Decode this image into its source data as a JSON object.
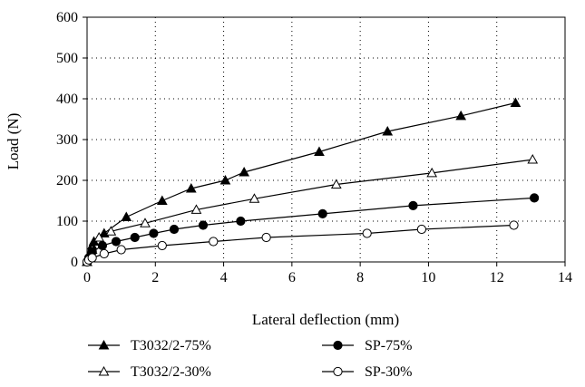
{
  "chart_data": {
    "type": "line",
    "xlabel": "Lateral deflection (mm)",
    "ylabel": "Load (N)",
    "xlim": [
      0,
      14
    ],
    "ylim": [
      0,
      600
    ],
    "xticks": [
      0,
      2,
      4,
      6,
      8,
      10,
      12,
      14
    ],
    "yticks": [
      0,
      100,
      200,
      300,
      400,
      500,
      600
    ],
    "grid": "dotted",
    "legend_position": "bottom",
    "series": [
      {
        "name": "T3032/2-75%",
        "marker": "filled-triangle",
        "points": [
          [
            0,
            0
          ],
          [
            0.03,
            10
          ],
          [
            0.08,
            20
          ],
          [
            0.15,
            40
          ],
          [
            0.2,
            50
          ],
          [
            0.5,
            70
          ],
          [
            1.15,
            110
          ],
          [
            2.2,
            150
          ],
          [
            3.05,
            180
          ],
          [
            4.05,
            200
          ],
          [
            4.6,
            220
          ],
          [
            6.8,
            270
          ],
          [
            8.8,
            320
          ],
          [
            10.95,
            358
          ],
          [
            12.55,
            390
          ]
        ]
      },
      {
        "name": "T3032/2-30%",
        "marker": "open-triangle",
        "points": [
          [
            0,
            0
          ],
          [
            0.05,
            10
          ],
          [
            0.15,
            30
          ],
          [
            0.35,
            60
          ],
          [
            0.7,
            75
          ],
          [
            1.7,
            95
          ],
          [
            3.2,
            128
          ],
          [
            4.9,
            155
          ],
          [
            7.3,
            190
          ],
          [
            10.1,
            218
          ],
          [
            13.05,
            251
          ]
        ]
      },
      {
        "name": "SP-75%",
        "marker": "filled-circle",
        "points": [
          [
            0,
            0
          ],
          [
            0.05,
            10
          ],
          [
            0.15,
            25
          ],
          [
            0.45,
            40
          ],
          [
            0.85,
            50
          ],
          [
            1.4,
            60
          ],
          [
            1.95,
            70
          ],
          [
            2.55,
            80
          ],
          [
            3.4,
            90
          ],
          [
            4.5,
            100
          ],
          [
            6.9,
            118
          ],
          [
            9.55,
            138
          ],
          [
            13.1,
            157
          ]
        ]
      },
      {
        "name": "SP-30%",
        "marker": "open-circle",
        "points": [
          [
            0,
            0
          ],
          [
            0.05,
            5
          ],
          [
            0.15,
            10
          ],
          [
            0.5,
            20
          ],
          [
            1.0,
            30
          ],
          [
            2.2,
            40
          ],
          [
            3.7,
            50
          ],
          [
            5.25,
            60
          ],
          [
            8.2,
            70
          ],
          [
            9.8,
            80
          ],
          [
            12.5,
            90
          ]
        ]
      }
    ]
  }
}
